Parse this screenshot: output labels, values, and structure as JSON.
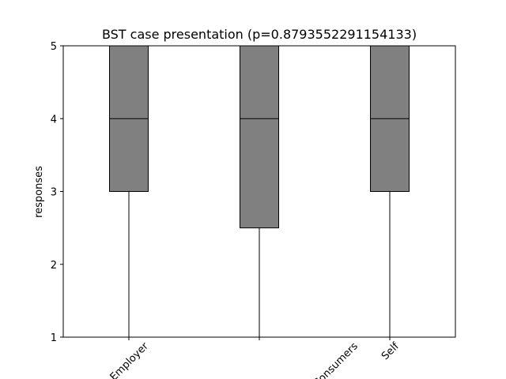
{
  "chart_data": {
    "type": "box",
    "title": "BST case presentation (p=0.8793552291154133)",
    "xlabel": "",
    "ylabel": "responses",
    "ylim": [
      1,
      5
    ],
    "yticks": [
      1,
      2,
      3,
      4,
      5
    ],
    "grid": false,
    "box_color": "#808080",
    "categories": [
      "Employer",
      "",
      "Consumers",
      "Self"
    ],
    "boxes": [
      {
        "label": "Employer",
        "whisker_low": 1,
        "q1": 3,
        "median": 4,
        "q3": 5,
        "whisker_high": 5
      },
      {
        "label": "",
        "whisker_low": 1,
        "q1": 2.5,
        "median": 4,
        "q3": 5,
        "whisker_high": 5
      },
      {
        "label": "Self",
        "whisker_low": 1,
        "q1": 3,
        "median": 4,
        "q3": 5,
        "whisker_high": 5
      }
    ],
    "xtick_labels": [
      {
        "text": "Employer"
      },
      {
        "text": ""
      },
      {
        "text": "Consumers"
      },
      {
        "text": "Self"
      }
    ]
  }
}
